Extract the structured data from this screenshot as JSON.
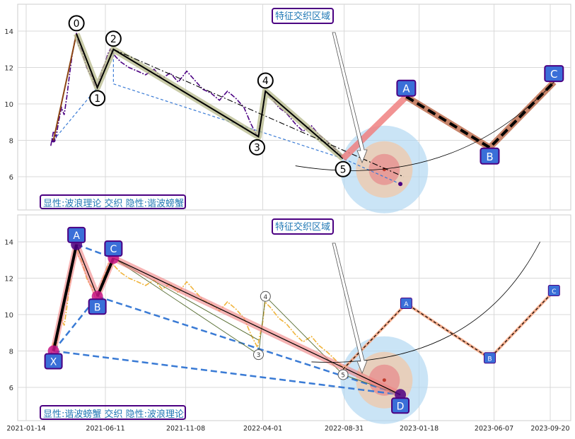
{
  "chart_data": [
    {
      "type": "line",
      "panel": "top",
      "ylim": [
        4.2,
        15.5
      ],
      "xlim": [
        "2021-01-14",
        "2023-10-08"
      ],
      "yticks": [
        6,
        8,
        10,
        12,
        14
      ],
      "grid": true,
      "annotation_title": "特征交织区域",
      "legend_text": "显性:波浪理论 交织 隐性:谐波螃蟹",
      "price_series": [
        [
          "2021-03-01",
          7.7
        ],
        [
          "2021-03-06",
          8.5
        ],
        [
          "2021-03-11",
          8.2
        ],
        [
          "2021-03-16",
          9.1
        ],
        [
          "2021-03-21",
          9.8
        ],
        [
          "2021-03-26",
          9.4
        ],
        [
          "2021-03-31",
          10.4
        ],
        [
          "2021-04-05",
          11.6
        ],
        [
          "2021-04-10",
          12.7
        ],
        [
          "2021-04-15",
          13.5
        ],
        [
          "2021-04-18",
          13.9
        ],
        [
          "2021-04-22",
          13.2
        ],
        [
          "2021-04-27",
          13.0
        ],
        [
          "2021-05-02",
          12.5
        ],
        [
          "2021-05-07",
          12.0
        ],
        [
          "2021-05-12",
          11.7
        ],
        [
          "2021-05-17",
          11.5
        ],
        [
          "2021-05-22",
          11.0
        ],
        [
          "2021-05-26",
          10.9
        ],
        [
          "2021-05-31",
          11.3
        ],
        [
          "2021-06-05",
          11.9
        ],
        [
          "2021-06-10",
          12.2
        ],
        [
          "2021-06-15",
          12.7
        ],
        [
          "2021-06-20",
          13.0
        ],
        [
          "2021-06-25",
          12.8
        ],
        [
          "2021-06-30",
          12.6
        ],
        [
          "2021-07-10",
          12.3
        ],
        [
          "2021-07-25",
          12.0
        ],
        [
          "2021-08-10",
          11.8
        ],
        [
          "2021-08-25",
          11.6
        ],
        [
          "2021-09-10",
          11.9
        ],
        [
          "2021-09-25",
          11.4
        ],
        [
          "2021-10-10",
          11.7
        ],
        [
          "2021-10-25",
          11.2
        ],
        [
          "2021-11-10",
          11.8
        ],
        [
          "2021-11-25",
          11.3
        ],
        [
          "2021-12-10",
          10.8
        ],
        [
          "2021-12-25",
          10.6
        ],
        [
          "2022-01-10",
          10.2
        ],
        [
          "2022-01-25",
          10.7
        ],
        [
          "2022-02-10",
          10.3
        ],
        [
          "2022-02-25",
          9.8
        ],
        [
          "2022-03-10",
          8.9
        ],
        [
          "2022-03-22",
          8.2
        ],
        [
          "2022-04-01",
          9.6
        ],
        [
          "2022-04-05",
          10.7
        ],
        [
          "2022-04-15",
          10.4
        ],
        [
          "2022-05-01",
          9.8
        ],
        [
          "2022-05-15",
          9.5
        ],
        [
          "2022-06-01",
          8.9
        ],
        [
          "2022-06-15",
          8.5
        ],
        [
          "2022-07-01",
          8.8
        ],
        [
          "2022-07-15",
          8.3
        ],
        [
          "2022-08-01",
          7.9
        ],
        [
          "2022-08-15",
          7.5
        ],
        [
          "2022-08-29",
          7.1
        ]
      ],
      "wave_points": [
        {
          "label": "0",
          "x": "2021-04-18",
          "y": 13.85
        },
        {
          "label": "1",
          "x": "2021-05-27",
          "y": 10.9
        },
        {
          "label": "2",
          "x": "2021-06-26",
          "y": 13.0
        },
        {
          "label": "3",
          "x": "2022-03-24",
          "y": 8.2
        },
        {
          "label": "4",
          "x": "2022-04-06",
          "y": 10.7
        },
        {
          "label": "5",
          "x": "2022-08-29",
          "y": 7.0
        }
      ],
      "forecast_points": [
        {
          "label": "A",
          "x": "2022-12-25",
          "y": 10.4
        },
        {
          "label": "B",
          "x": "2023-05-30",
          "y": 7.6
        },
        {
          "label": "C",
          "x": "2023-09-27",
          "y": 11.2
        }
      ],
      "hidden_crab_points": [
        {
          "x": "2021-03-06",
          "y": 8.0
        },
        {
          "x": "2021-06-26",
          "y": 11.1
        },
        {
          "x": "2022-12-14",
          "y": 5.6
        }
      ],
      "target_zone": {
        "x": "2022-11-14",
        "y": 6.4
      },
      "y_axis_side": "left"
    },
    {
      "type": "line",
      "panel": "bottom",
      "ylim": [
        4.2,
        15.5
      ],
      "xlim": [
        "2021-01-14",
        "2023-10-08"
      ],
      "yticks": [
        6,
        8,
        10,
        12,
        14
      ],
      "xticks": [
        "2021-01-14",
        "2021-06-11",
        "2021-11-08",
        "2022-04-01",
        "2022-08-31",
        "2023-01-18",
        "2023-06-07",
        "2023-09-20"
      ],
      "grid": true,
      "annotation_title": "特征交织区域",
      "legend_text": "显性:谐波螃蟹 交织 隐性:波浪理论",
      "crab_points": [
        {
          "label": "X",
          "x": "2021-03-06",
          "y": 8.0
        },
        {
          "label": "A",
          "x": "2021-04-18",
          "y": 13.85
        },
        {
          "label": "B",
          "x": "2021-05-27",
          "y": 11.0
        },
        {
          "label": "C",
          "x": "2021-06-26",
          "y": 13.1
        },
        {
          "label": "D",
          "x": "2022-12-14",
          "y": 5.6
        }
      ],
      "hidden_wave_points": [
        {
          "label": "4",
          "x": "2022-04-06",
          "y": 11.0
        },
        {
          "label": "3",
          "x": "2022-03-24",
          "y": 7.8
        },
        {
          "label": "5",
          "x": "2022-08-29",
          "y": 6.7
        }
      ],
      "forecast_points": [
        {
          "label": "A",
          "x": "2022-12-25",
          "y": 10.6
        },
        {
          "label": "B",
          "x": "2023-05-30",
          "y": 7.6
        },
        {
          "label": "C",
          "x": "2023-09-27",
          "y": 11.3
        }
      ],
      "target_zone": {
        "x": "2022-11-14",
        "y": 6.4
      }
    }
  ]
}
